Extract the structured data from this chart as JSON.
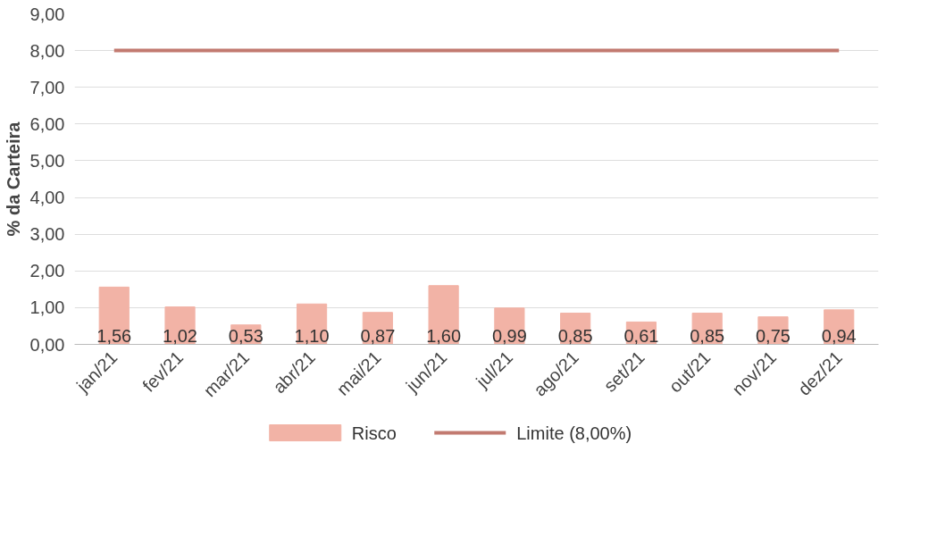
{
  "chart_data": {
    "type": "bar",
    "ylabel": "% da Carteira",
    "categories": [
      "jan/21",
      "fev/21",
      "mar/21",
      "abr/21",
      "mai/21",
      "jun/21",
      "jul/21",
      "ago/21",
      "set/21",
      "out/21",
      "nov/21",
      "dez/21"
    ],
    "series": [
      {
        "name": "Risco",
        "color": "#f2b3a6",
        "values": [
          1.56,
          1.02,
          0.53,
          1.1,
          0.87,
          1.6,
          0.99,
          0.85,
          0.61,
          0.85,
          0.75,
          0.94
        ],
        "value_labels": [
          "1,56",
          "1,02",
          "0,53",
          "1,10",
          "0,87",
          "1,60",
          "0,99",
          "0,85",
          "0,61",
          "0,85",
          "0,75",
          "0,94"
        ]
      },
      {
        "name": "Limite (8,00%)",
        "type": "line",
        "color": "#c27a70",
        "values": [
          8,
          8,
          8,
          8,
          8,
          8,
          8,
          8,
          8,
          8,
          8,
          8
        ]
      }
    ],
    "ylim": [
      0,
      9
    ],
    "yticks": [
      {
        "value": 0,
        "label": "0,00"
      },
      {
        "value": 1,
        "label": "1,00"
      },
      {
        "value": 2,
        "label": "2,00"
      },
      {
        "value": 3,
        "label": "3,00"
      },
      {
        "value": 4,
        "label": "4,00"
      },
      {
        "value": 5,
        "label": "5,00"
      },
      {
        "value": 6,
        "label": "6,00"
      },
      {
        "value": 7,
        "label": "7,00"
      },
      {
        "value": 8,
        "label": "8,00"
      },
      {
        "value": 9,
        "label": "9,00"
      }
    ],
    "grid": "y",
    "legend": "bottom"
  }
}
